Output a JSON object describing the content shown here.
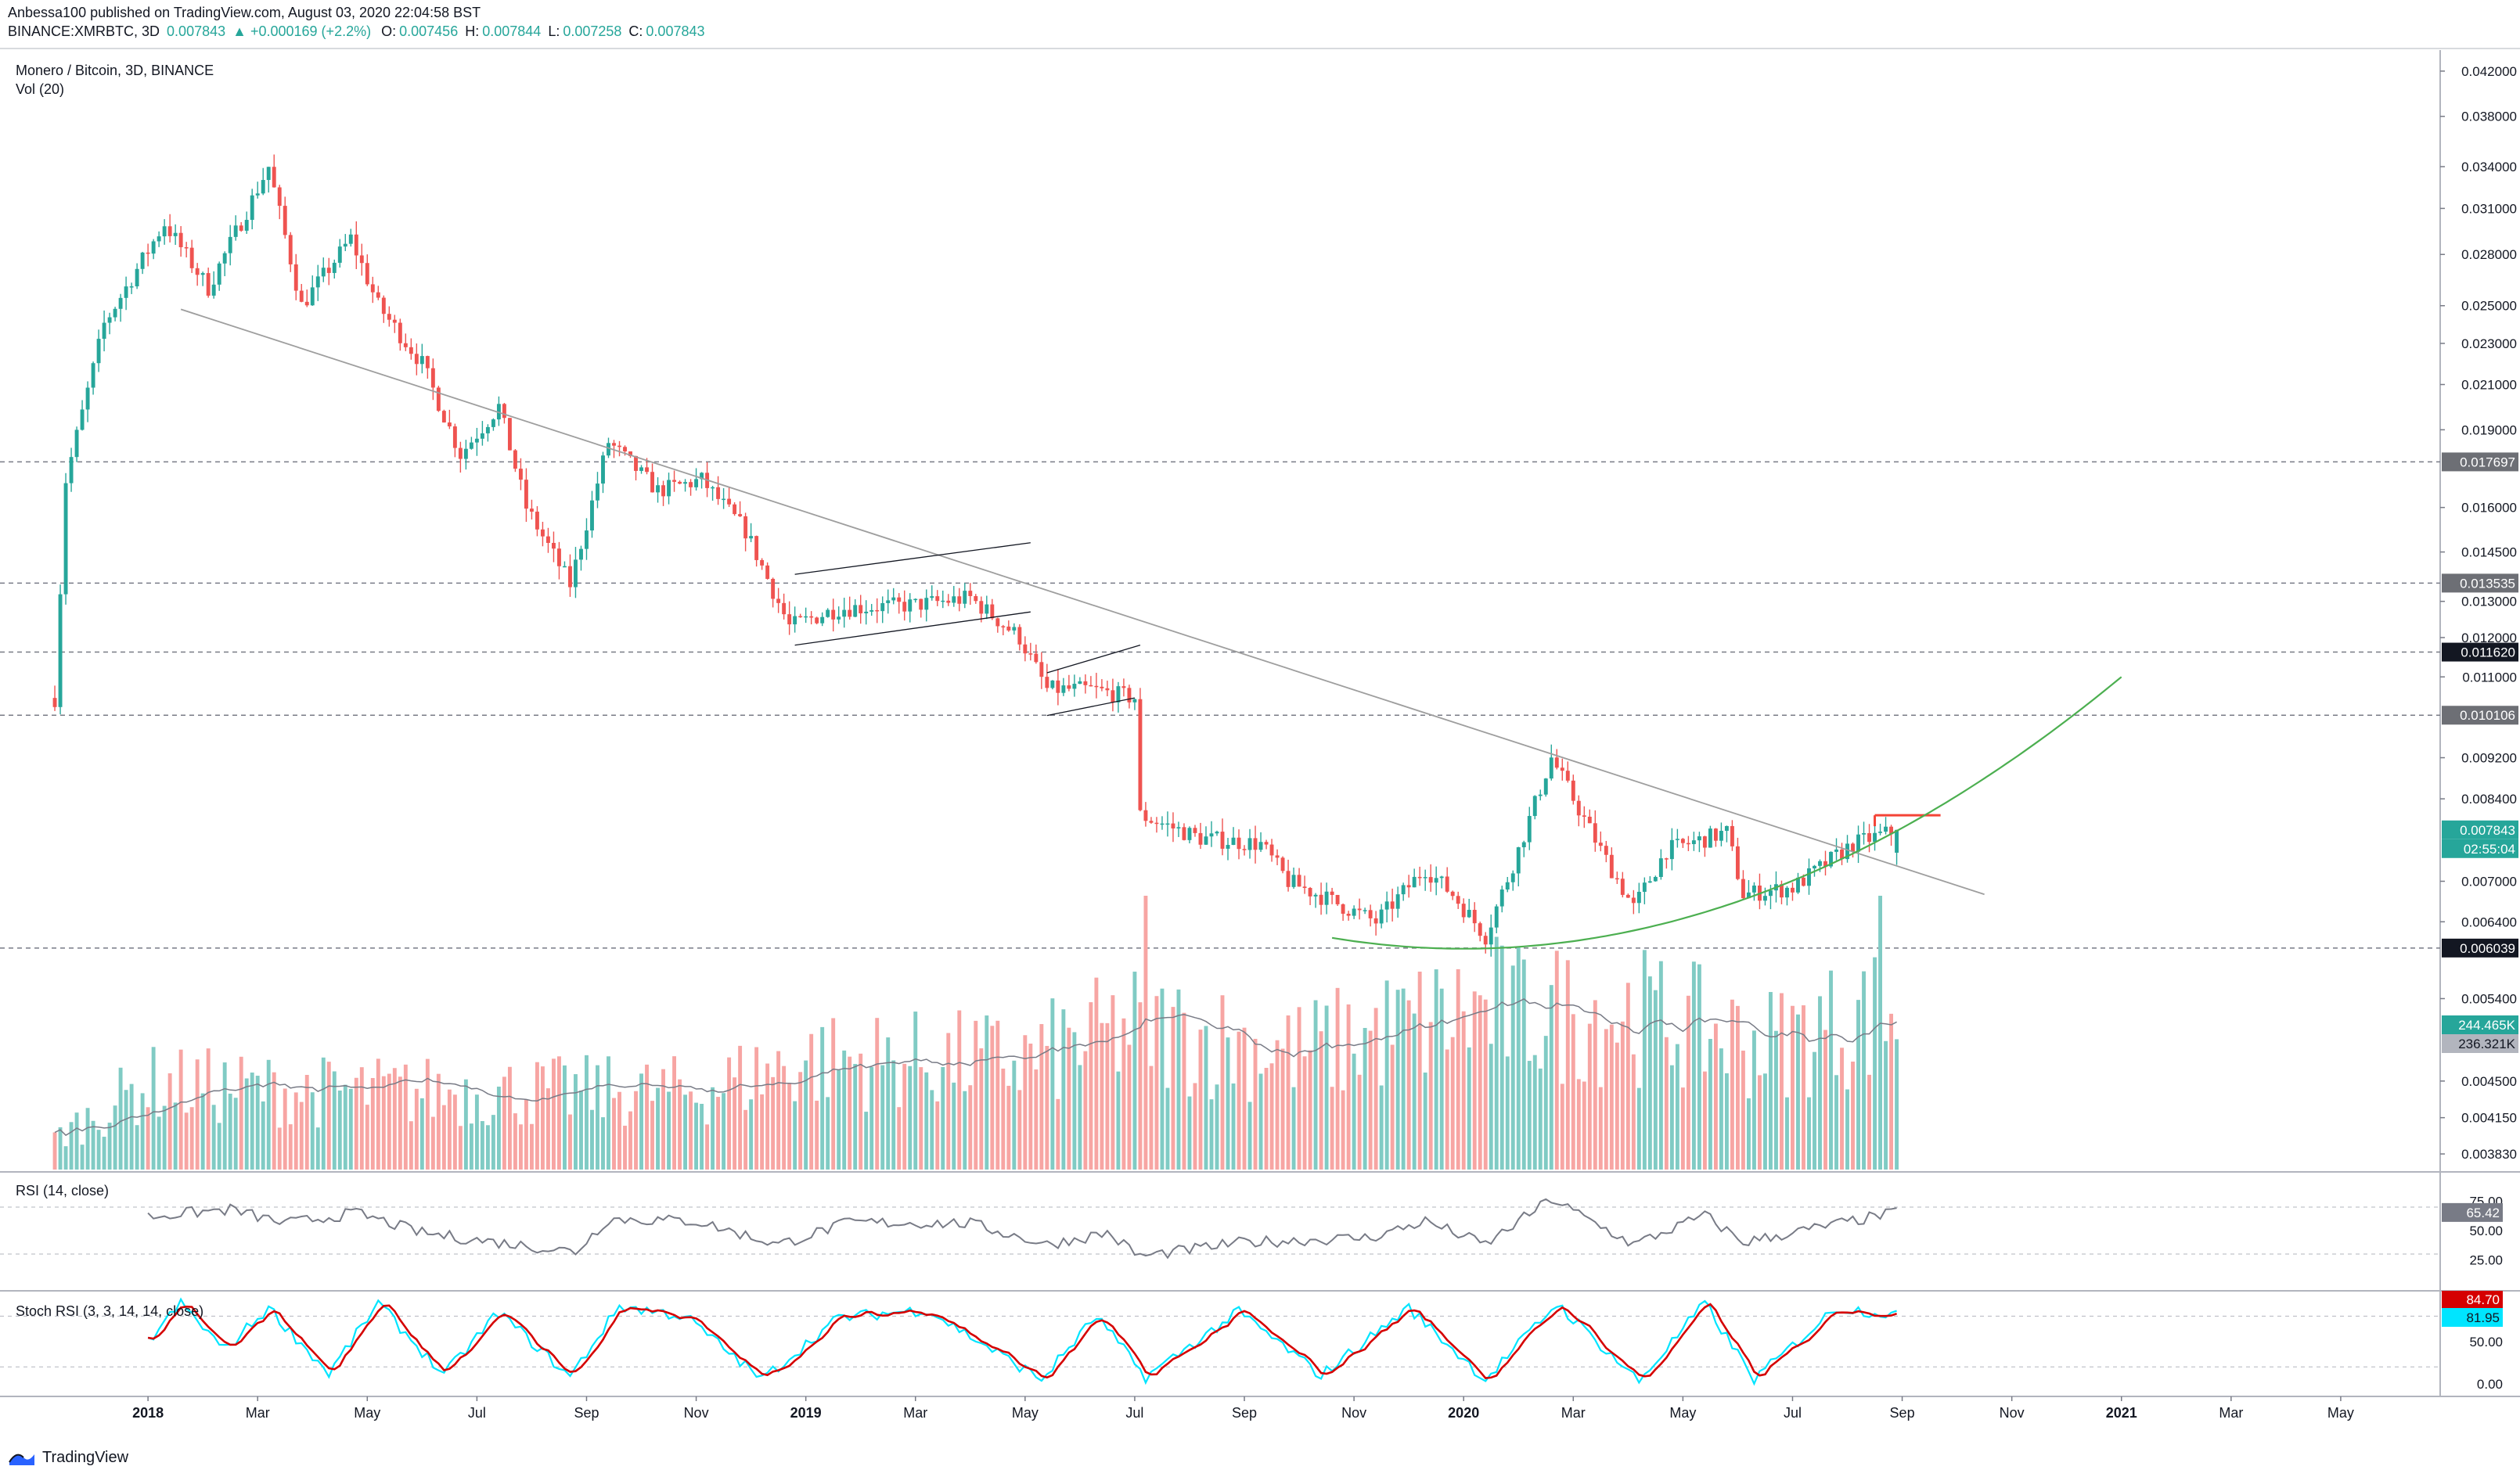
{
  "header": {
    "publisher": "Anbessa100 published on TradingView.com, August 03, 2020 22:04:58 BST",
    "symbol": "BINANCE:XMRBTC, 3D",
    "last": "0.007843",
    "change": "+0.000169 (+2.2%)",
    "open_label": "O:",
    "open": "0.007456",
    "high_label": "H:",
    "high": "0.007844",
    "low_label": "L:",
    "low": "0.007258",
    "close_label": "C:",
    "close": "0.007843"
  },
  "colors": {
    "up": "#26a69a",
    "down": "#ef5350",
    "vol_up": "#80cbc4",
    "vol_down": "#f7a5a3",
    "trendline": "#9e9e9e",
    "curve": "#4caf50",
    "resistance": "#f44336",
    "rsi": "#787b86",
    "stoch_k": "#00e5ff",
    "stoch_d": "#d50000",
    "grid": "#787b86"
  },
  "chart_data": [
    {
      "type": "candlestick",
      "title": "Monero / Bitcoin, 3D, BINANCE",
      "volume_label": "Vol (20)",
      "x_ticks": [
        "2018",
        "Mar",
        "May",
        "Jul",
        "Sep",
        "Nov",
        "2019",
        "Mar",
        "May",
        "Jul",
        "Sep",
        "Nov",
        "2020",
        "Mar",
        "May",
        "Jul",
        "Sep",
        "Nov",
        "2021",
        "Mar",
        "May"
      ],
      "x_tick_months": [
        0,
        2,
        4,
        6,
        8,
        10,
        12,
        14,
        16,
        18,
        20,
        22,
        24,
        26,
        28,
        30,
        32,
        34,
        36,
        38,
        40
      ],
      "y_ticks": [
        "0.042000",
        "0.038000",
        "0.034000",
        "0.031000",
        "0.028000",
        "0.025000",
        "0.023000",
        "0.021000",
        "0.019000",
        "0.016000",
        "0.014500",
        "0.013000",
        "0.012000",
        "0.011000",
        "0.009200",
        "0.008400",
        "0.007000",
        "0.006400",
        "0.005400",
        "0.004500",
        "0.004150",
        "0.003830"
      ],
      "y_tick_values": [
        0.042,
        0.038,
        0.034,
        0.031,
        0.028,
        0.025,
        0.023,
        0.021,
        0.019,
        0.016,
        0.0145,
        0.013,
        0.012,
        0.011,
        0.0092,
        0.0084,
        0.007,
        0.0064,
        0.0054,
        0.0045,
        0.00415,
        0.00383
      ],
      "y_scale": "log",
      "ylim": [
        0.0037,
        0.044
      ],
      "x_range_months": [
        -2.7,
        41.7
      ],
      "horizontal_levels": [
        {
          "label": "0.017697",
          "value": 0.017697
        },
        {
          "label": "0.013535",
          "value": 0.013535
        },
        {
          "label": "0.011620",
          "value": 0.01162
        },
        {
          "label": "0.010106",
          "value": 0.010106
        },
        {
          "label": "0.006039",
          "value": 0.006039
        }
      ],
      "close_marker": {
        "label": "0.007843",
        "value": 0.007843,
        "timer": "02:55:04"
      },
      "volume_markers": {
        "current": "244.465K",
        "ma": "236.321K"
      },
      "anchors": [
        {
          "m": -1.7,
          "p": 0.0105
        },
        {
          "m": -1.5,
          "p": 0.017
        },
        {
          "m": -0.8,
          "p": 0.024
        },
        {
          "m": 0.3,
          "p": 0.03
        },
        {
          "m": 1.1,
          "p": 0.026
        },
        {
          "m": 2.2,
          "p": 0.034
        },
        {
          "m": 2.8,
          "p": 0.025
        },
        {
          "m": 3.7,
          "p": 0.029
        },
        {
          "m": 4.2,
          "p": 0.025
        },
        {
          "m": 5.0,
          "p": 0.022
        },
        {
          "m": 5.7,
          "p": 0.018
        },
        {
          "m": 6.4,
          "p": 0.02
        },
        {
          "m": 6.9,
          "p": 0.016
        },
        {
          "m": 7.7,
          "p": 0.0135
        },
        {
          "m": 8.4,
          "p": 0.0185
        },
        {
          "m": 9.3,
          "p": 0.0166
        },
        {
          "m": 10.1,
          "p": 0.017
        },
        {
          "m": 10.9,
          "p": 0.0152
        },
        {
          "m": 11.7,
          "p": 0.0123
        },
        {
          "m": 12.6,
          "p": 0.0128
        },
        {
          "m": 14.0,
          "p": 0.0129
        },
        {
          "m": 15.0,
          "p": 0.0131
        },
        {
          "m": 15.9,
          "p": 0.012
        },
        {
          "m": 16.4,
          "p": 0.0107
        },
        {
          "m": 17.2,
          "p": 0.0107
        },
        {
          "m": 18.0,
          "p": 0.0105
        },
        {
          "m": 18.1,
          "p": 0.0081
        },
        {
          "m": 19.2,
          "p": 0.0077
        },
        {
          "m": 20.3,
          "p": 0.0076
        },
        {
          "m": 20.8,
          "p": 0.007
        },
        {
          "m": 21.6,
          "p": 0.0067
        },
        {
          "m": 22.4,
          "p": 0.0064
        },
        {
          "m": 23.3,
          "p": 0.0072
        },
        {
          "m": 23.8,
          "p": 0.0068
        },
        {
          "m": 24.4,
          "p": 0.0062
        },
        {
          "m": 25.0,
          "p": 0.0075
        },
        {
          "m": 25.6,
          "p": 0.0092
        },
        {
          "m": 26.5,
          "p": 0.0075
        },
        {
          "m": 27.1,
          "p": 0.0066
        },
        {
          "m": 27.7,
          "p": 0.0075
        },
        {
          "m": 28.8,
          "p": 0.0078
        },
        {
          "m": 29.1,
          "p": 0.0068
        },
        {
          "m": 30.0,
          "p": 0.0069
        },
        {
          "m": 31.1,
          "p": 0.0076
        },
        {
          "m": 31.9,
          "p": 0.00784
        }
      ],
      "volume_profile": [
        {
          "m": -1.7,
          "v": 0.12
        },
        {
          "m": 0,
          "v": 0.33
        },
        {
          "m": 3,
          "v": 0.3
        },
        {
          "m": 7,
          "v": 0.3
        },
        {
          "m": 10,
          "v": 0.3
        },
        {
          "m": 12,
          "v": 0.42
        },
        {
          "m": 16,
          "v": 0.42
        },
        {
          "m": 18,
          "v": 0.55
        },
        {
          "m": 21,
          "v": 0.45
        },
        {
          "m": 24,
          "v": 0.6
        },
        {
          "m": 27,
          "v": 0.6
        },
        {
          "m": 29.5,
          "v": 0.48
        },
        {
          "m": 31.9,
          "v": 0.62
        }
      ],
      "volume_spikes": [
        {
          "m": 18.2,
          "v": 1.0
        },
        {
          "m": 31.6,
          "v": 1.0
        },
        {
          "m": 24.6,
          "v": 0.85
        }
      ],
      "trendlines": [
        {
          "name": "main-downtrend",
          "from": {
            "m": 0.6,
            "p": 0.0248
          },
          "to": {
            "m": 33.5,
            "p": 0.0068
          }
        },
        {
          "name": "channel-2019-top",
          "from": {
            "m": 11.8,
            "p": 0.0138
          },
          "to": {
            "m": 16.1,
            "p": 0.0148
          }
        },
        {
          "name": "channel-2019-bottom",
          "from": {
            "m": 11.8,
            "p": 0.0118
          },
          "to": {
            "m": 16.1,
            "p": 0.0127
          }
        },
        {
          "name": "channel-jun-top",
          "from": {
            "m": 16.4,
            "p": 0.0111
          },
          "to": {
            "m": 18.1,
            "p": 0.0118
          }
        },
        {
          "name": "channel-jun-bottom",
          "from": {
            "m": 16.4,
            "p": 0.0101
          },
          "to": {
            "m": 18.0,
            "p": 0.0105
          }
        }
      ],
      "curve": {
        "name": "rounding-bottom",
        "from_m": 21.6,
        "vertex_m": 24.0,
        "vertex_p": 0.00603,
        "to_m": 36.0,
        "to_p": 0.011
      },
      "resistance": {
        "from_m": 31.5,
        "to_m": 32.7,
        "p": 0.0081
      }
    },
    {
      "type": "line",
      "title": "RSI (14, close)",
      "ylim": [
        0,
        100
      ],
      "y_ticks": [
        "75.00",
        "50.00",
        "25.00"
      ],
      "y_tick_values": [
        75,
        50,
        25
      ],
      "bands": [
        70,
        30
      ],
      "current": "65.42",
      "anchors": [
        {
          "m": 0,
          "v": 62
        },
        {
          "m": 1.5,
          "v": 68
        },
        {
          "m": 2.5,
          "v": 56
        },
        {
          "m": 3.8,
          "v": 65
        },
        {
          "m": 5,
          "v": 48
        },
        {
          "m": 6,
          "v": 42
        },
        {
          "m": 7.8,
          "v": 32
        },
        {
          "m": 8.4,
          "v": 60
        },
        {
          "m": 10,
          "v": 58
        },
        {
          "m": 11.5,
          "v": 38
        },
        {
          "m": 12.8,
          "v": 57
        },
        {
          "m": 15,
          "v": 56
        },
        {
          "m": 16.4,
          "v": 38
        },
        {
          "m": 17.5,
          "v": 48
        },
        {
          "m": 18.1,
          "v": 28
        },
        {
          "m": 20,
          "v": 40
        },
        {
          "m": 22.3,
          "v": 44
        },
        {
          "m": 23.3,
          "v": 58
        },
        {
          "m": 24.4,
          "v": 38
        },
        {
          "m": 25.6,
          "v": 77
        },
        {
          "m": 27.1,
          "v": 38
        },
        {
          "m": 28.4,
          "v": 63
        },
        {
          "m": 29.1,
          "v": 40
        },
        {
          "m": 31.9,
          "v": 65.42
        }
      ]
    },
    {
      "type": "line",
      "title": "Stoch RSI (3, 3, 14, 14, close)",
      "ylim": [
        -15,
        110
      ],
      "y_ticks": [
        "50.00",
        "0.00"
      ],
      "y_tick_values": [
        50,
        0
      ],
      "bands": [
        80,
        20
      ],
      "series": [
        {
          "name": "K",
          "current": "81.95"
        },
        {
          "name": "D",
          "current": "84.70"
        }
      ],
      "anchors": [
        {
          "m": 0,
          "v": 50
        },
        {
          "m": 0.6,
          "v": 95
        },
        {
          "m": 1.4,
          "v": 40
        },
        {
          "m": 2.2,
          "v": 90
        },
        {
          "m": 3.3,
          "v": 12
        },
        {
          "m": 4.2,
          "v": 95
        },
        {
          "m": 5.4,
          "v": 10
        },
        {
          "m": 6.4,
          "v": 85
        },
        {
          "m": 7.7,
          "v": 8
        },
        {
          "m": 8.6,
          "v": 92
        },
        {
          "m": 9.8,
          "v": 80
        },
        {
          "m": 11.2,
          "v": 5
        },
        {
          "m": 12.6,
          "v": 78
        },
        {
          "m": 14.2,
          "v": 88
        },
        {
          "m": 16.3,
          "v": 5
        },
        {
          "m": 17.3,
          "v": 80
        },
        {
          "m": 18.2,
          "v": 8
        },
        {
          "m": 19.9,
          "v": 85
        },
        {
          "m": 21.4,
          "v": 10
        },
        {
          "m": 23,
          "v": 90
        },
        {
          "m": 24.4,
          "v": 5
        },
        {
          "m": 25.7,
          "v": 95
        },
        {
          "m": 27.2,
          "v": 3
        },
        {
          "m": 28.4,
          "v": 95
        },
        {
          "m": 29.3,
          "v": 5
        },
        {
          "m": 30.8,
          "v": 90
        },
        {
          "m": 31.9,
          "v": 82
        }
      ]
    }
  ],
  "footer": {
    "brand": "TradingView"
  }
}
